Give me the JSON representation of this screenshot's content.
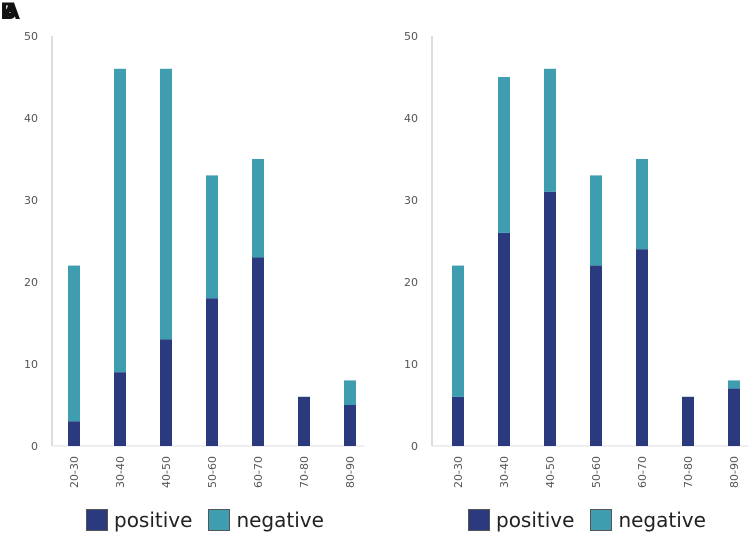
{
  "panels": [
    {
      "label": "B"
    },
    {
      "label": "A"
    }
  ],
  "colors": {
    "positive": "#2b3a7e",
    "negative": "#3f9db0"
  },
  "legend": {
    "positive": "positive",
    "negative": "negative"
  },
  "chart_data": [
    {
      "type": "bar",
      "stacked": true,
      "title": "",
      "xlabel": "",
      "ylabel": "",
      "ylim": [
        0,
        50
      ],
      "yticks": [
        0,
        10,
        20,
        30,
        40,
        50
      ],
      "categories": [
        "20-30",
        "30-40",
        "40-50",
        "50-60",
        "60-70",
        "70-80",
        "80-90"
      ],
      "series": [
        {
          "name": "positive",
          "values": [
            3,
            9,
            13,
            18,
            23,
            6,
            5
          ]
        },
        {
          "name": "negative",
          "values": [
            19,
            37,
            33,
            15,
            12,
            0,
            3
          ]
        }
      ],
      "legend_position": "bottom"
    },
    {
      "type": "bar",
      "stacked": true,
      "title": "",
      "xlabel": "",
      "ylabel": "",
      "ylim": [
        0,
        50
      ],
      "yticks": [
        0,
        10,
        20,
        30,
        40,
        50
      ],
      "categories": [
        "20-30",
        "30-40",
        "40-50",
        "50-60",
        "60-70",
        "70-80",
        "80-90"
      ],
      "series": [
        {
          "name": "positive",
          "values": [
            6,
            26,
            31,
            22,
            24,
            6,
            7
          ]
        },
        {
          "name": "negative",
          "values": [
            16,
            19,
            15,
            11,
            11,
            0,
            1
          ]
        }
      ],
      "legend_position": "bottom"
    }
  ]
}
